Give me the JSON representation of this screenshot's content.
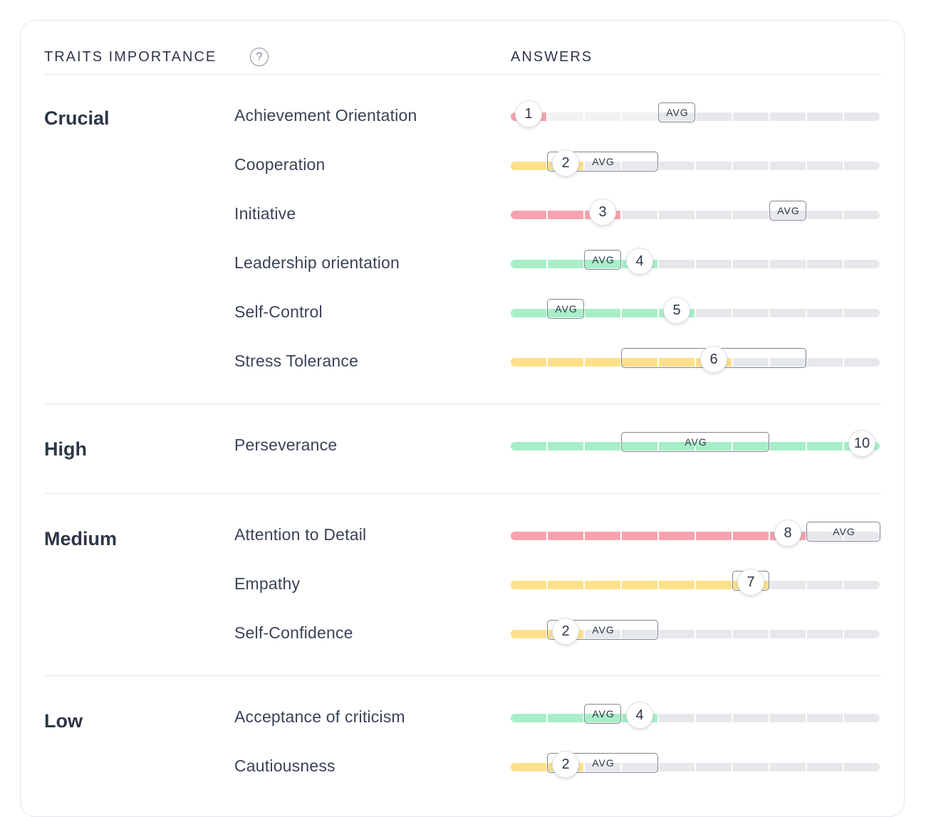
{
  "header": {
    "traits_label": "TRAITS IMPORTANCE",
    "help_icon": "?",
    "answers_label": "ANSWERS"
  },
  "colors": {
    "red": "#f5a3ae",
    "yellow": "#fde08a",
    "green": "#a8eec8",
    "empty": "#e6e8ec",
    "empty_dim": "#f1f2f4"
  },
  "answers_max": 10,
  "sections": [
    {
      "level": "Crucial",
      "rows": [
        {
          "trait": "Achievement Orientation",
          "score": 1,
          "color": "red",
          "avg_from": 5,
          "avg_to": 5,
          "avg_label": "AVG"
        },
        {
          "trait": "Cooperation",
          "score": 2,
          "color": "yellow",
          "avg_from": 2,
          "avg_to": 4,
          "avg_label": "AVG"
        },
        {
          "trait": "Initiative",
          "score": 3,
          "color": "red",
          "avg_from": 8,
          "avg_to": 8,
          "avg_label": "AVG"
        },
        {
          "trait": "Leadership orientation",
          "score": 4,
          "color": "green",
          "avg_from": 3,
          "avg_to": 3,
          "avg_label": "AVG"
        },
        {
          "trait": "Self-Control",
          "score": 5,
          "color": "green",
          "avg_from": 2,
          "avg_to": 2,
          "avg_label": "AVG"
        },
        {
          "trait": "Stress Tolerance",
          "score": 6,
          "color": "yellow",
          "avg_from": 4,
          "avg_to": 8,
          "avg_label": "AVG"
        }
      ]
    },
    {
      "level": "High",
      "rows": [
        {
          "trait": "Perseverance",
          "score": 10,
          "color": "green",
          "avg_from": 4,
          "avg_to": 7,
          "avg_label": "AVG"
        }
      ]
    },
    {
      "level": "Medium",
      "rows": [
        {
          "trait": "Attention to Detail",
          "score": 8,
          "color": "red",
          "avg_from": 9,
          "avg_to": 10,
          "avg_label": "AVG"
        },
        {
          "trait": "Empathy",
          "score": 7,
          "color": "yellow",
          "avg_from": 7,
          "avg_to": 7,
          "avg_label": ""
        },
        {
          "trait": "Self-Confidence",
          "score": 2,
          "color": "yellow",
          "avg_from": 2,
          "avg_to": 4,
          "avg_label": "AVG"
        }
      ]
    },
    {
      "level": "Low",
      "rows": [
        {
          "trait": "Acceptance of criticism",
          "score": 4,
          "color": "green",
          "avg_from": 3,
          "avg_to": 3,
          "avg_label": "AVG"
        },
        {
          "trait": "Cautiousness",
          "score": 2,
          "color": "yellow",
          "avg_from": 2,
          "avg_to": 4,
          "avg_label": "AVG"
        }
      ]
    }
  ]
}
